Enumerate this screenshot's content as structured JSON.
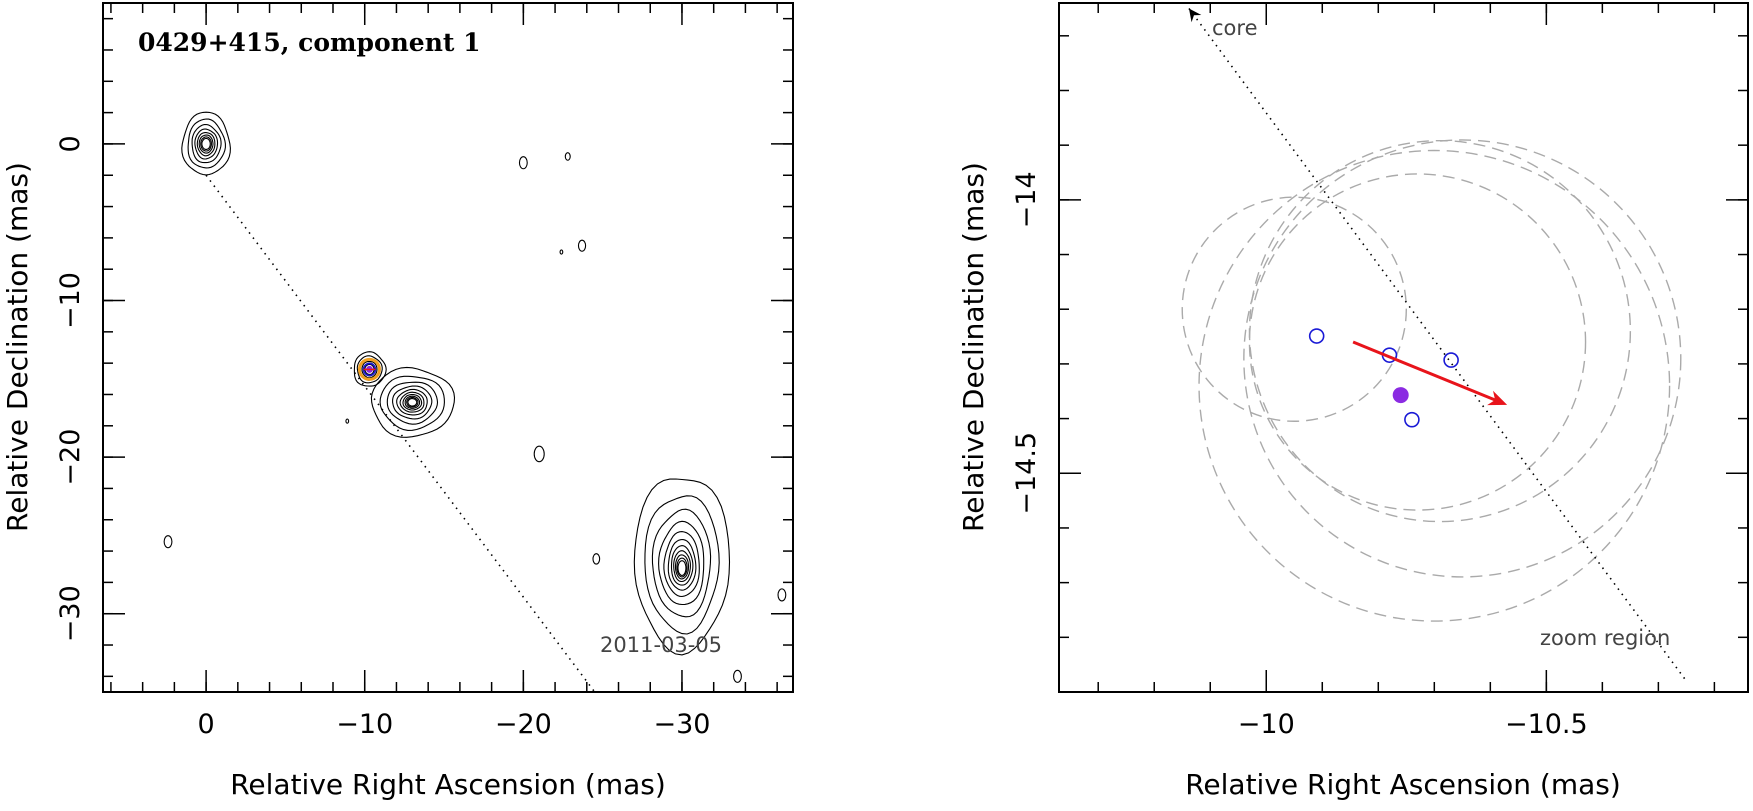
{
  "colors": {
    "contour": "#000000",
    "model_circle": "#aaaaaa",
    "epoch_position": "#1a1ad6",
    "mean_position": "#8b2be2",
    "velocity_vector": "#e8141b",
    "component_marker_outer": "#f0a020"
  },
  "chart_data": [
    {
      "type": "scatter",
      "title": "0429+415, component 1",
      "date_label": "2011-03-05",
      "xlabel": "Relative Right Ascension (mas)",
      "ylabel": "Relative Declination (mas)",
      "xlim": [
        6.5,
        -37
      ],
      "ylim": [
        -35,
        9
      ],
      "x_reversed": true,
      "xticks": [
        0,
        -10,
        -20,
        -30
      ],
      "xtick_labels": [
        "0",
        "−10",
        "−20",
        "−30"
      ],
      "yticks": [
        0,
        -10,
        -20,
        -30
      ],
      "ytick_labels": [
        "0",
        "−10",
        "−20",
        "−30"
      ],
      "x_minor_step": 2,
      "y_minor_step": 2,
      "grid": false,
      "jet_axis": {
        "x": [
          0,
          -24.5
        ],
        "y": [
          -2,
          -35
        ]
      },
      "sources": [
        {
          "name": "core",
          "x": 0,
          "y": 0,
          "rx": 1.5,
          "ry": 2.0,
          "levels": 8
        },
        {
          "name": "component 1",
          "x": -10.3,
          "y": -14.4,
          "rx": 1.0,
          "ry": 1.1,
          "levels": 6
        },
        {
          "name": "feature",
          "x": -13.0,
          "y": -16.5,
          "rx": 2.6,
          "ry": 2.2,
          "levels": 10
        },
        {
          "name": "outer lobe",
          "x": -30.0,
          "y": -26.7,
          "rx": 3.0,
          "ry": 5.6,
          "levels": 11
        }
      ],
      "noise_blobs": [
        {
          "x": -20.0,
          "y": -1.2,
          "r": 0.35
        },
        {
          "x": -22.8,
          "y": -0.8,
          "r": 0.22
        },
        {
          "x": -23.7,
          "y": -6.5,
          "r": 0.32
        },
        {
          "x": -22.4,
          "y": -6.9,
          "r": 0.12
        },
        {
          "x": -21.0,
          "y": -19.8,
          "r": 0.45
        },
        {
          "x": -8.9,
          "y": -17.7,
          "r": 0.12
        },
        {
          "x": 2.4,
          "y": -25.4,
          "r": 0.35
        },
        {
          "x": -24.6,
          "y": -26.5,
          "r": 0.3
        },
        {
          "x": -33.5,
          "y": -34.0,
          "r": 0.35
        },
        {
          "x": -36.3,
          "y": -28.8,
          "r": 0.35
        }
      ],
      "component_marker": {
        "x": -10.3,
        "y": -14.4
      }
    },
    {
      "type": "scatter",
      "title": "",
      "xlabel": "Relative Right Ascension (mas)",
      "ylabel": "Relative Declination (mas)",
      "xlim": [
        -9.63,
        -10.86
      ],
      "ylim": [
        -14.9,
        -13.64
      ],
      "x_reversed": true,
      "xticks": [
        -10,
        -10.5
      ],
      "xtick_labels": [
        "−10",
        "−10.5"
      ],
      "yticks": [
        -14,
        -14.5
      ],
      "ytick_labels": [
        "−14",
        "−14.5"
      ],
      "x_minor_step": 0.1,
      "y_minor_step": 0.1,
      "grid": false,
      "core_label": "core",
      "region_label": "zoom region",
      "jet_axis": {
        "x": [
          -9.862,
          -10.75
        ],
        "y": [
          -13.65,
          -14.88
        ]
      },
      "model_circles": [
        {
          "x": -10.05,
          "y": -14.2,
          "r": 0.2
        },
        {
          "x": -10.27,
          "y": -14.26,
          "r": 0.3
        },
        {
          "x": -10.31,
          "y": -14.24,
          "r": 0.34
        },
        {
          "x": -10.35,
          "y": -14.29,
          "r": 0.39
        },
        {
          "x": -10.3,
          "y": -14.34,
          "r": 0.42
        }
      ],
      "epoch_positions": [
        {
          "x": -10.09,
          "y": -14.249
        },
        {
          "x": -10.22,
          "y": -14.284
        },
        {
          "x": -10.33,
          "y": -14.293
        },
        {
          "x": -10.26,
          "y": -14.402
        }
      ],
      "mean_position": {
        "x": -10.24,
        "y": -14.357
      },
      "velocity_vector": {
        "x": [
          -10.155,
          -10.43
        ],
        "y": [
          -14.26,
          -14.375
        ]
      }
    }
  ]
}
